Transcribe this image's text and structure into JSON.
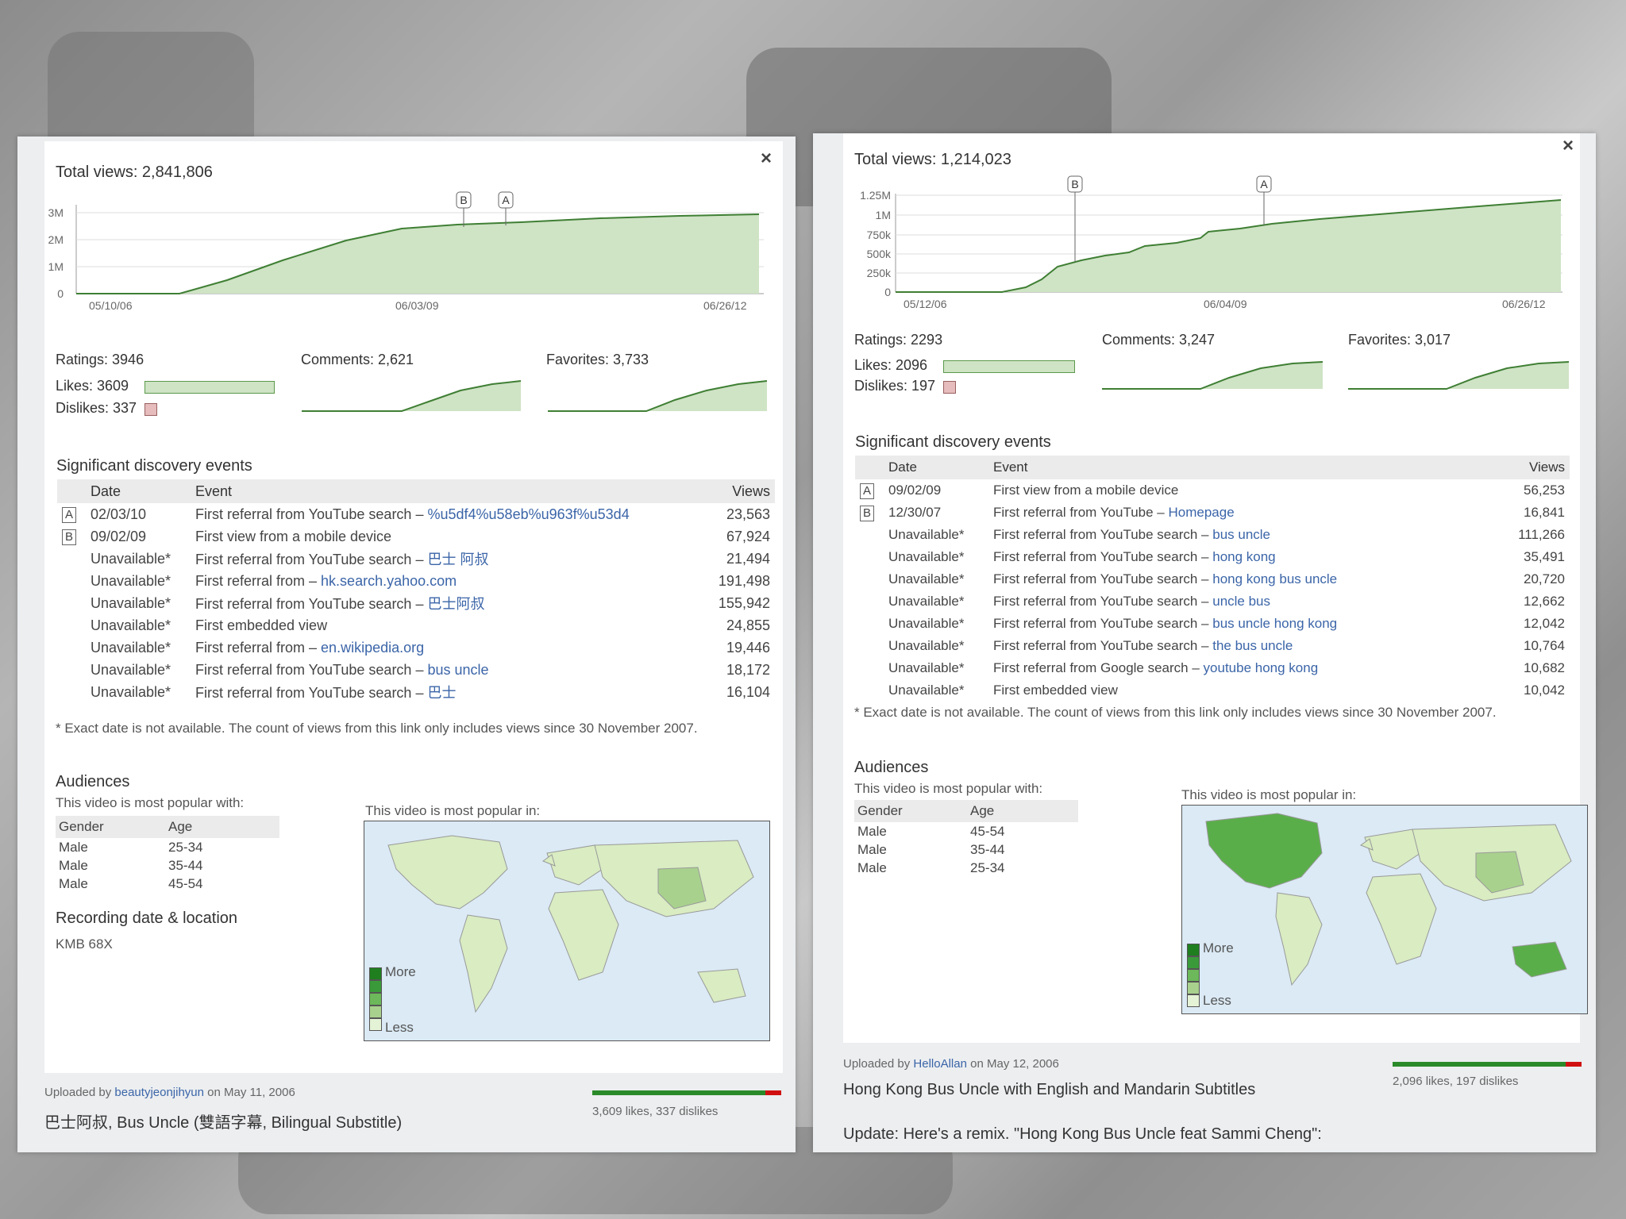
{
  "left": {
    "total_views": "Total views: 2,841,806",
    "y_ticks": [
      "3M",
      "2M",
      "1M",
      "0"
    ],
    "x_ticks": [
      "05/10/06",
      "06/03/09",
      "06/26/12"
    ],
    "marker_a": "A",
    "marker_b": "B",
    "ratings": "Ratings: 3946",
    "likes": "Likes: 3609",
    "dislikes": "Dislikes: 337",
    "comments": "Comments: 2,621",
    "favorites": "Favorites: 3,733",
    "events_title": "Significant discovery events",
    "col_date": "Date",
    "col_event": "Event",
    "col_views": "Views",
    "events": [
      {
        "marker": "A",
        "date": "02/03/10",
        "text": "First referral from YouTube search –",
        "link": "%u5df4%u58eb%u963f%u53d4",
        "views": "23,563"
      },
      {
        "marker": "B",
        "date": "09/02/09",
        "text": "First view from a mobile device",
        "link": "",
        "views": "67,924"
      },
      {
        "marker": "",
        "date": "Unavailable*",
        "text": "First referral from YouTube search –",
        "link": "巴士 阿叔",
        "views": "21,494"
      },
      {
        "marker": "",
        "date": "Unavailable*",
        "text": "First referral from –",
        "link": "hk.search.yahoo.com",
        "views": "191,498"
      },
      {
        "marker": "",
        "date": "Unavailable*",
        "text": "First referral from YouTube search –",
        "link": "巴士阿叔",
        "views": "155,942"
      },
      {
        "marker": "",
        "date": "Unavailable*",
        "text": "First embedded view",
        "link": "",
        "views": "24,855"
      },
      {
        "marker": "",
        "date": "Unavailable*",
        "text": "First referral from –",
        "link": "en.wikipedia.org",
        "views": "19,446"
      },
      {
        "marker": "",
        "date": "Unavailable*",
        "text": "First referral from YouTube search –",
        "link": "bus uncle",
        "views": "18,172"
      },
      {
        "marker": "",
        "date": "Unavailable*",
        "text": "First referral from YouTube search –",
        "link": "巴士",
        "views": "16,104"
      }
    ],
    "note": "* Exact date is not available. The count of views from this link only includes views since 30 November 2007.",
    "audiences": "Audiences",
    "popular_with": "This video is most popular with:",
    "col_gender": "Gender",
    "col_age": "Age",
    "demo": [
      {
        "gender": "Male",
        "age": "25-34"
      },
      {
        "gender": "Male",
        "age": "35-44"
      },
      {
        "gender": "Male",
        "age": "45-54"
      }
    ],
    "recording_title": "Recording date & location",
    "recording_value": "KMB 68X",
    "popular_in": "This video is most popular in:",
    "more": "More",
    "less": "Less",
    "uploaded_by": "Uploaded by",
    "uploader": "beautyjeonjihyun",
    "upload_date": "on May 11, 2006",
    "video_title": "巴士阿叔, Bus Uncle (雙語字幕, Bilingual Substitle)",
    "likes_summary": "3,609 likes, 337 dislikes",
    "like_fraction": 0.915
  },
  "right": {
    "total_views": "Total views: 1,214,023",
    "y_ticks": [
      "1.25M",
      "1M",
      "750k",
      "500k",
      "250k",
      "0"
    ],
    "x_ticks": [
      "05/12/06",
      "06/04/09",
      "06/26/12"
    ],
    "marker_a": "A",
    "marker_b": "B",
    "ratings": "Ratings: 2293",
    "likes": "Likes: 2096",
    "dislikes": "Dislikes: 197",
    "comments": "Comments: 3,247",
    "favorites": "Favorites: 3,017",
    "events_title": "Significant discovery events",
    "col_date": "Date",
    "col_event": "Event",
    "col_views": "Views",
    "events": [
      {
        "marker": "A",
        "date": "09/02/09",
        "text": "First view from a mobile device",
        "link": "",
        "views": "56,253"
      },
      {
        "marker": "B",
        "date": "12/30/07",
        "text": "First referral from YouTube –",
        "link": "Homepage",
        "views": "16,841"
      },
      {
        "marker": "",
        "date": "Unavailable*",
        "text": "First referral from YouTube search –",
        "link": "bus uncle",
        "views": "111,266"
      },
      {
        "marker": "",
        "date": "Unavailable*",
        "text": "First referral from YouTube search –",
        "link": "hong kong",
        "views": "35,491"
      },
      {
        "marker": "",
        "date": "Unavailable*",
        "text": "First referral from YouTube search –",
        "link": "hong kong bus uncle",
        "views": "20,720"
      },
      {
        "marker": "",
        "date": "Unavailable*",
        "text": "First referral from YouTube search –",
        "link": "uncle bus",
        "views": "12,662"
      },
      {
        "marker": "",
        "date": "Unavailable*",
        "text": "First referral from YouTube search –",
        "link": "bus uncle hong kong",
        "views": "12,042"
      },
      {
        "marker": "",
        "date": "Unavailable*",
        "text": "First referral from YouTube search –",
        "link": "the bus uncle",
        "views": "10,764"
      },
      {
        "marker": "",
        "date": "Unavailable*",
        "text": "First referral from Google search –",
        "link": "youtube hong kong",
        "views": "10,682"
      },
      {
        "marker": "",
        "date": "Unavailable*",
        "text": "First embedded view",
        "link": "",
        "views": "10,042"
      }
    ],
    "note": "* Exact date is not available. The count of views from this link only includes views since 30 November 2007.",
    "audiences": "Audiences",
    "popular_with": "This video is most popular with:",
    "col_gender": "Gender",
    "col_age": "Age",
    "demo": [
      {
        "gender": "Male",
        "age": "45-54"
      },
      {
        "gender": "Male",
        "age": "35-44"
      },
      {
        "gender": "Male",
        "age": "25-34"
      }
    ],
    "popular_in": "This video is most popular in:",
    "more": "More",
    "less": "Less",
    "uploaded_by": "Uploaded by",
    "uploader": "HelloAllan",
    "upload_date": "on May 12, 2006",
    "video_title": "Hong Kong Bus Uncle with English and Mandarin Subtitles",
    "update_text": "Update: Here's a remix. \"Hong Kong Bus Uncle feat Sammi Cheng\":",
    "likes_summary": "2,096 likes, 197 dislikes",
    "like_fraction": 0.914
  },
  "icons": {
    "close": "close-icon"
  },
  "colors": {
    "area_fill": "#cfe3c5",
    "line": "#3f7f34",
    "link": "#3b65a8",
    "like": "#2a8a2a",
    "dislike": "#d01010"
  }
}
